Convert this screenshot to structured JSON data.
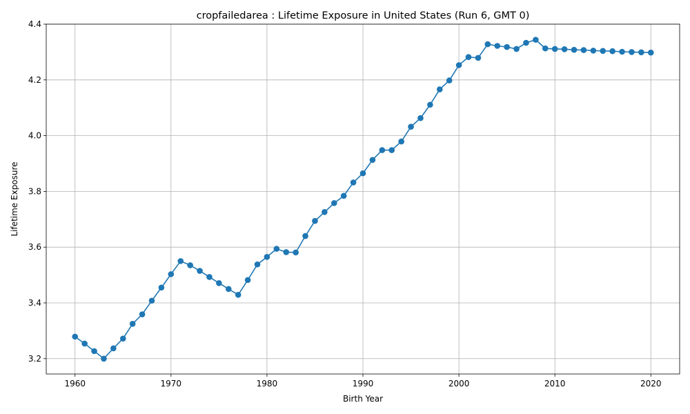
{
  "chart_data": {
    "type": "line",
    "title": "cropfailedarea : Lifetime Exposure in United States (Run 6, GMT 0)",
    "xlabel": "Birth Year",
    "ylabel": "Lifetime Exposure",
    "xlim": [
      1957,
      2023
    ],
    "ylim": [
      3.145,
      4.4
    ],
    "xticks": [
      1960,
      1970,
      1980,
      1990,
      2000,
      2010,
      2020
    ],
    "yticks": [
      3.2,
      3.4,
      3.6,
      3.8,
      4.0,
      4.2,
      4.4
    ],
    "ytick_labels": [
      "3.2",
      "3.4",
      "3.6",
      "3.8",
      "4.0",
      "4.2",
      "4.4"
    ],
    "grid": true,
    "series_color": "#1f77b4",
    "marker": "circle",
    "series": [
      {
        "x": [
          1960,
          1961,
          1962,
          1963,
          1964,
          1965,
          1966,
          1967,
          1968,
          1969,
          1970,
          1971,
          1972,
          1973,
          1974,
          1975,
          1976,
          1977,
          1978,
          1979,
          1980,
          1981,
          1982,
          1983,
          1984,
          1985,
          1986,
          1987,
          1988,
          1989,
          1990,
          1991,
          1992,
          1993,
          1994,
          1995,
          1996,
          1997,
          1998,
          1999,
          2000,
          2001,
          2002,
          2003,
          2004,
          2005,
          2006,
          2007,
          2008,
          2009,
          2010,
          2011,
          2012,
          2013,
          2014,
          2015,
          2016,
          2017,
          2018,
          2019,
          2020
        ],
        "values": [
          3.279,
          3.254,
          3.227,
          3.2,
          3.237,
          3.272,
          3.325,
          3.359,
          3.408,
          3.455,
          3.503,
          3.55,
          3.535,
          3.515,
          3.493,
          3.471,
          3.45,
          3.429,
          3.482,
          3.538,
          3.565,
          3.594,
          3.582,
          3.581,
          3.64,
          3.694,
          3.726,
          3.758,
          3.784,
          3.832,
          3.865,
          3.913,
          3.948,
          3.948,
          3.979,
          4.032,
          4.063,
          4.111,
          4.166,
          4.198,
          4.253,
          4.282,
          4.279,
          4.328,
          4.322,
          4.318,
          4.311,
          4.333,
          4.344,
          4.313,
          4.311,
          4.31,
          4.308,
          4.307,
          4.305,
          4.304,
          4.303,
          4.301,
          4.3,
          4.299,
          4.298
        ]
      }
    ]
  }
}
